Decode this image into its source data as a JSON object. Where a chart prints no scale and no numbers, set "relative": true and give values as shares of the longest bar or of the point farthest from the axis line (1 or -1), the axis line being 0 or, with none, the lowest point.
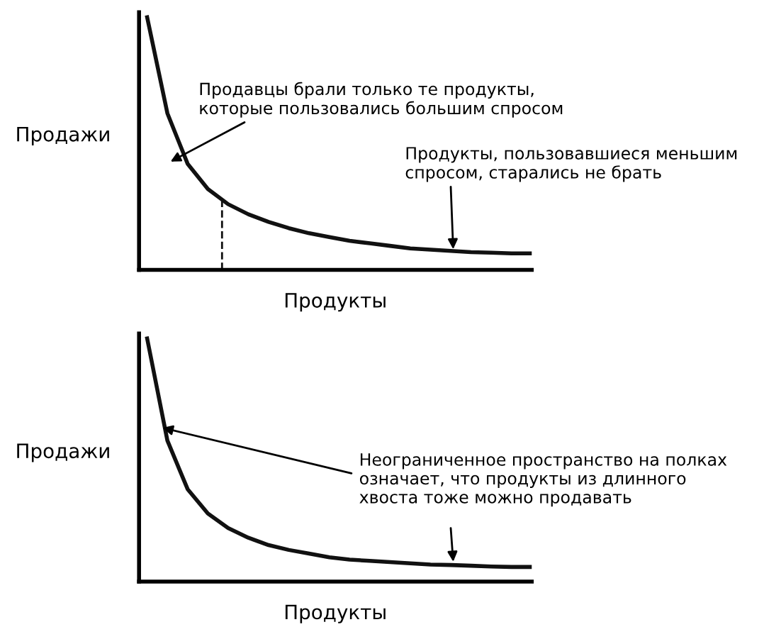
{
  "chart_data": [
    {
      "type": "line",
      "relative": true,
      "xlabel": "Продукты",
      "ylabel": "Продажи",
      "marker": "none",
      "line_style": "solid",
      "categories": [
        null,
        null,
        null,
        null,
        null,
        null,
        null,
        null,
        null,
        null,
        null,
        null,
        null,
        null,
        null,
        null,
        null,
        null,
        null,
        null
      ],
      "series": [
        {
          "color": "#111111",
          "values": [
            1.0,
            0.62,
            0.42,
            0.32,
            0.26,
            0.22,
            0.19,
            0.165,
            0.145,
            0.13,
            0.115,
            0.105,
            0.095,
            0.085,
            0.08,
            0.075,
            0.07,
            0.068,
            0.065,
            0.065
          ]
        }
      ],
      "annotations": [
        "Продавцы брали только те продукты,\nкоторые пользовались большим спросом",
        "Продукты, пользовавшиеся меньшим\nспросом, старались не брать"
      ]
    },
    {
      "type": "line",
      "relative": true,
      "xlabel": "Продукты",
      "ylabel": "Продажи",
      "marker": "none",
      "line_style": "solid",
      "categories": [
        null,
        null,
        null,
        null,
        null,
        null,
        null,
        null,
        null,
        null,
        null,
        null,
        null,
        null,
        null,
        null,
        null,
        null,
        null,
        null
      ],
      "series": [
        {
          "color": "#111111",
          "values": [
            1.0,
            0.58,
            0.38,
            0.28,
            0.22,
            0.18,
            0.15,
            0.13,
            0.115,
            0.1,
            0.09,
            0.085,
            0.08,
            0.075,
            0.07,
            0.068,
            0.065,
            0.062,
            0.06,
            0.06
          ]
        }
      ],
      "annotations": [
        "Неограниченное пространство на полках\nозначает, что продукты из длинного\nхвоста тоже можно продавать"
      ]
    }
  ]
}
